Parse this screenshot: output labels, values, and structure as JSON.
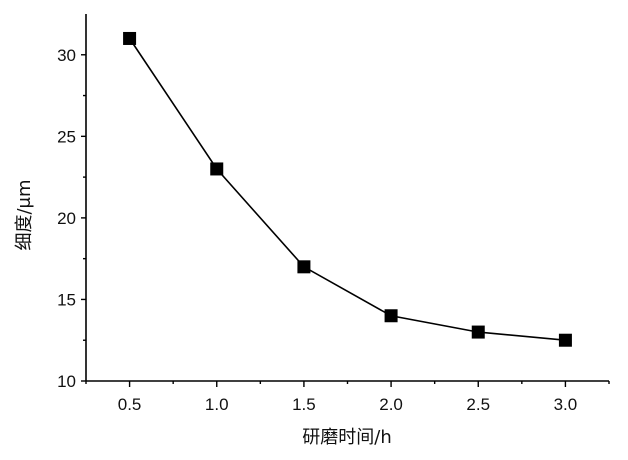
{
  "chart_data": {
    "type": "line",
    "title": "",
    "xlabel": "研磨时间/h",
    "ylabel": "细度/μm",
    "x": [
      0.5,
      1.0,
      1.5,
      2.0,
      2.5,
      3.0
    ],
    "series": [
      {
        "values": [
          31,
          23,
          17,
          14,
          13,
          12.5
        ]
      }
    ],
    "xlim": [
      0.25,
      3.25
    ],
    "ylim": [
      10,
      32.5
    ],
    "xticks": [
      "0.5",
      "1.0",
      "1.5",
      "2.0",
      "2.5",
      "3.0"
    ],
    "yticks": [
      "10",
      "15",
      "20",
      "25",
      "30"
    ],
    "marker": "square",
    "grid": false,
    "legend": "none"
  }
}
